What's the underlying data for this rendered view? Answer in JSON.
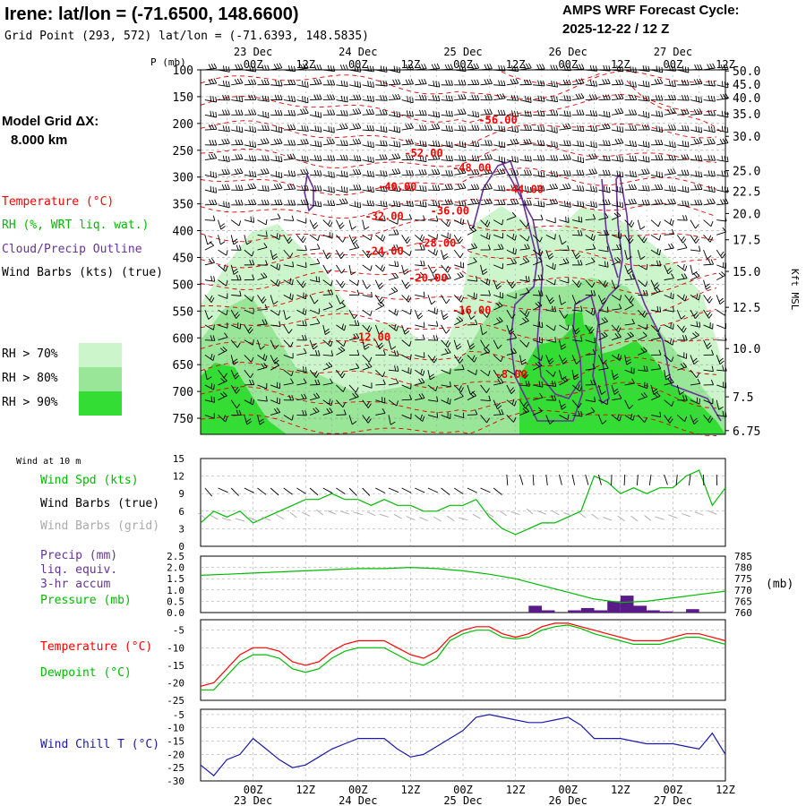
{
  "header": {
    "title": "Irene:  lat/lon = (-71.6500, 148.6600)",
    "grid_point": "Grid Point (293, 572) lat/lon = (-71.6393, 148.5835)",
    "cycle_line1": "AMPS WRF Forecast Cycle:",
    "cycle_line2": "2025-12-22 / 12  Z"
  },
  "model_grid": {
    "line1": "Model Grid ΔX:",
    "line2": "8.000 km"
  },
  "legend": {
    "temperature": "Temperature (°C)",
    "rh": "RH (%, WRT liq. wat.)",
    "cloud": "Cloud/Precip Outline",
    "wind": "Wind Barbs (kts) (true)",
    "rh70": "RH > 70%",
    "rh80": "RH > 80%",
    "rh90": "RH > 90%"
  },
  "panel_labels": {
    "wind10": "Wind at 10 m",
    "wind_spd": "Wind Spd (kts)",
    "wind_barbs_true": "Wind Barbs (true)",
    "wind_barbs_grid": "Wind Barbs (grid)",
    "precip1": "Precip (mm)",
    "precip2": "liq. equiv.",
    "precip3": "3-hr accum",
    "pressure": "Pressure (mb)",
    "pressure_unit": "(mb)",
    "temp": "Temperature (°C)",
    "dewpoint": "Dewpoint (°C)",
    "windchill": "Wind Chill T (°C)"
  },
  "colors": {
    "temp_red": "#ff0000",
    "dash_red": "#dd0000",
    "rh_green": "#00bb00",
    "cloud_purple": "#663399",
    "precip_bar": "#5a1a8a",
    "windchill_blue": "#1a1aaa",
    "rh70": "#ccf5cc",
    "rh80": "#99e699",
    "rh90": "#33dd33",
    "grid_gray": "#999999",
    "barb_gray": "#aaaaaa"
  },
  "chart_data": [
    {
      "type": "cross-section",
      "name": "upper",
      "p_axis_title": "P (mb)",
      "kft_axis_title": "Kft MSL",
      "pressure_ticks": [
        "100",
        "150",
        "200",
        "250",
        "300",
        "350",
        "400",
        "450",
        "500",
        "550",
        "600",
        "650",
        "700",
        "750"
      ],
      "pressure_values": [
        100,
        150,
        200,
        250,
        300,
        350,
        400,
        450,
        500,
        550,
        600,
        650,
        700,
        750
      ],
      "ylim": [
        100,
        780
      ],
      "height_ticks": [
        "50.0",
        "45.0",
        "40.0",
        "35.0",
        "30.0",
        "25.0",
        "22.5",
        "20.0",
        "17.5",
        "15.0",
        "12.5",
        "10.0",
        "7.5",
        "6.75"
      ],
      "height_pressures": [
        102,
        127,
        152,
        182,
        224,
        288,
        326,
        368,
        417,
        476,
        543,
        620,
        710,
        773
      ],
      "time_ticks": [
        "00Z",
        "12Z",
        "00Z",
        "12Z",
        "00Z",
        "12Z",
        "00Z",
        "12Z",
        "00Z",
        "12Z"
      ],
      "time_hours": [
        12,
        24,
        36,
        48,
        60,
        72,
        84,
        96,
        108,
        120
      ],
      "date_labels": [
        "23 Dec",
        "24 Dec",
        "25 Dec",
        "26 Dec",
        "27 Dec"
      ],
      "date_hours": [
        12,
        36,
        60,
        84,
        108
      ],
      "xlim": [
        0,
        120
      ],
      "temp_labels": [
        {
          "text": "-56.00",
          "hour": 68,
          "p": 200
        },
        {
          "text": "-52.00",
          "hour": 51,
          "p": 262
        },
        {
          "text": "-48.00",
          "hour": 62,
          "p": 290
        },
        {
          "text": "-44.00",
          "hour": 74,
          "p": 330
        },
        {
          "text": "-40.00",
          "hour": 45,
          "p": 325
        },
        {
          "text": "-36.00",
          "hour": 57,
          "p": 370
        },
        {
          "text": "-32.00",
          "hour": 42,
          "p": 380
        },
        {
          "text": "-28.00",
          "hour": 54,
          "p": 430
        },
        {
          "text": "-24.00",
          "hour": 42,
          "p": 445
        },
        {
          "text": "-20.00",
          "hour": 52,
          "p": 495
        },
        {
          "text": "-16.00",
          "hour": 62,
          "p": 555
        },
        {
          "text": "-12.00",
          "hour": 39,
          "p": 605
        },
        {
          "text": "-8.00",
          "hour": 71,
          "p": 675
        }
      ]
    },
    {
      "type": "line",
      "name": "wind10",
      "yticks": [
        "0",
        "3",
        "6",
        "9",
        "12",
        "15"
      ],
      "ylim": [
        0,
        15
      ],
      "x": [
        0,
        3,
        6,
        9,
        12,
        15,
        18,
        21,
        24,
        27,
        30,
        33,
        36,
        39,
        42,
        45,
        48,
        51,
        54,
        57,
        60,
        63,
        66,
        69,
        72,
        75,
        78,
        81,
        84,
        87,
        90,
        93,
        96,
        99,
        102,
        105,
        108,
        111,
        114,
        117,
        120
      ],
      "series": [
        {
          "name": "Wind Spd (kts)",
          "values": [
            4,
            6,
            5,
            6,
            4,
            5,
            6,
            7,
            8,
            8,
            9,
            8,
            8,
            7,
            8,
            7,
            7,
            6,
            6,
            7,
            7,
            8,
            5,
            3,
            2,
            3,
            4,
            4,
            5,
            6,
            12,
            11,
            9,
            10,
            9,
            10,
            10,
            12,
            13,
            7,
            10
          ]
        }
      ]
    },
    {
      "type": "bar+line",
      "name": "precip_pressure",
      "yticks_left": [
        "0.0",
        "0.5",
        "1.0",
        "1.5",
        "2.0",
        "2.5"
      ],
      "ylim_left": [
        0,
        2.5
      ],
      "yticks_right": [
        "760",
        "765",
        "770",
        "775",
        "780",
        "785"
      ],
      "ylim_right": [
        760,
        785
      ],
      "precip_hours": [
        72,
        75,
        78,
        81,
        84,
        87,
        90,
        93,
        96,
        99,
        102,
        105,
        108,
        111,
        114,
        117
      ],
      "precip_values": [
        0,
        0.3,
        0.1,
        0,
        0.1,
        0.2,
        0.1,
        0.5,
        0.75,
        0.3,
        0.1,
        0.05,
        0,
        0.15,
        0,
        0
      ],
      "pressure_x": [
        0,
        6,
        12,
        18,
        24,
        30,
        36,
        42,
        48,
        54,
        60,
        66,
        72,
        78,
        84,
        90,
        96,
        102,
        108,
        114,
        120
      ],
      "pressure_values": [
        776.5,
        777,
        777.5,
        778,
        778.5,
        779,
        779.5,
        779.5,
        780,
        779.5,
        778.5,
        777,
        775,
        772,
        769,
        766,
        764.5,
        765,
        766.5,
        768,
        769.5
      ]
    },
    {
      "type": "line",
      "name": "temperature",
      "yticks": [
        "-25",
        "-20",
        "-15",
        "-10",
        "-5"
      ],
      "ylim": [
        -25,
        -2
      ],
      "x": [
        0,
        3,
        6,
        9,
        12,
        15,
        18,
        21,
        24,
        27,
        30,
        33,
        36,
        39,
        42,
        45,
        48,
        51,
        54,
        57,
        60,
        63,
        66,
        69,
        72,
        75,
        78,
        81,
        84,
        87,
        90,
        93,
        96,
        99,
        102,
        105,
        108,
        111,
        114,
        117,
        120
      ],
      "series": [
        {
          "name": "Temperature",
          "values": [
            -21,
            -20,
            -16,
            -12,
            -10,
            -10,
            -11,
            -14,
            -15,
            -14,
            -11,
            -9,
            -8,
            -8,
            -8,
            -10,
            -12,
            -13,
            -11,
            -7,
            -5,
            -4,
            -4,
            -6,
            -7,
            -6,
            -4,
            -3,
            -3,
            -4,
            -5,
            -6,
            -7,
            -8,
            -8,
            -8,
            -7,
            -6,
            -6,
            -7,
            -8
          ]
        },
        {
          "name": "Dewpoint",
          "values": [
            -22,
            -22,
            -18,
            -14,
            -12,
            -12,
            -13,
            -16,
            -17,
            -16,
            -13,
            -11,
            -10,
            -10,
            -10,
            -12,
            -14,
            -15,
            -13,
            -8,
            -6,
            -5,
            -5,
            -7,
            -7.5,
            -7,
            -5,
            -4,
            -3.5,
            -4.5,
            -6,
            -7,
            -8,
            -9,
            -9,
            -9,
            -8,
            -7,
            -7,
            -8,
            -9
          ]
        }
      ]
    },
    {
      "type": "line",
      "name": "windchill",
      "yticks": [
        "-30",
        "-25",
        "-20",
        "-15",
        "-10",
        "-5"
      ],
      "ylim": [
        -30,
        -3
      ],
      "x": [
        0,
        3,
        6,
        9,
        12,
        15,
        18,
        21,
        24,
        27,
        30,
        33,
        36,
        39,
        42,
        45,
        48,
        51,
        54,
        57,
        60,
        63,
        66,
        69,
        72,
        75,
        78,
        81,
        84,
        87,
        90,
        93,
        96,
        99,
        102,
        105,
        108,
        111,
        114,
        117,
        120
      ],
      "series": [
        {
          "name": "Wind Chill T",
          "values": [
            -24,
            -28,
            -22,
            -20,
            -14,
            -18,
            -22,
            -25,
            -24,
            -21,
            -18,
            -16,
            -14,
            -14,
            -14,
            -18,
            -21,
            -20,
            -17,
            -14,
            -11,
            -6,
            -5,
            -6,
            -7,
            -8,
            -8,
            -7,
            -6,
            -9,
            -14,
            -14,
            -14,
            -15,
            -16,
            -16,
            -16,
            -17,
            -18,
            -12,
            -20
          ]
        }
      ]
    }
  ]
}
